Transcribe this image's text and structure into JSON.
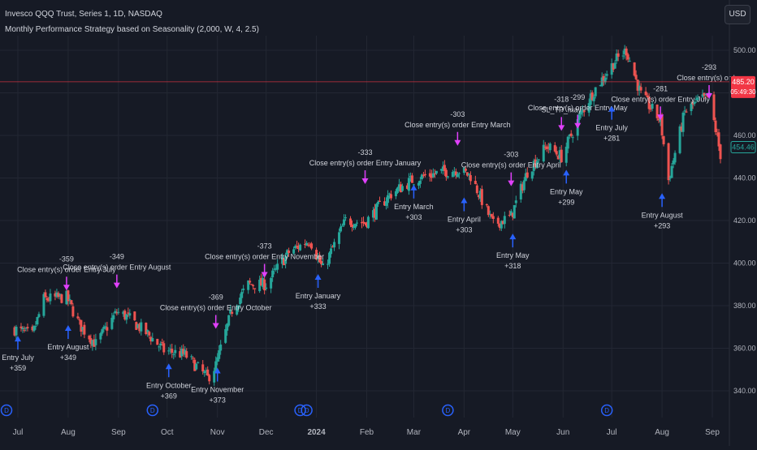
{
  "header": {
    "symbol_line": "Invesco QQQ Trust, Series 1, 1D, NASDAQ",
    "strategy_line": "Monthly Performance Strategy based on Seasonality (2,000, W, 4, 2.5)"
  },
  "currency_button": "USD",
  "colors": {
    "bg": "#161a25",
    "up": "#26a69a",
    "down": "#ef5350",
    "entry_arrow": "#2962ff",
    "exit_arrow": "#e040fb",
    "grid": "#232733",
    "price_line": "#f23645"
  },
  "price_tags": {
    "current_price": "485.20",
    "countdown": "05:49:30",
    "last_close": "454.46"
  },
  "chart_data": {
    "type": "candlestick",
    "title": "Invesco QQQ Trust, Series 1, 1D, NASDAQ",
    "ylim": [
      330,
      510
    ],
    "y_ticks": [
      "500.00",
      "480.00",
      "460.00",
      "440.00",
      "420.00",
      "400.00",
      "380.00",
      "360.00",
      "340.00"
    ],
    "x_ticks": [
      "Jul",
      "Aug",
      "Sep",
      "Oct",
      "Nov",
      "Dec",
      "2024",
      "Feb",
      "Mar",
      "Apr",
      "May",
      "Jun",
      "Jul",
      "Aug",
      "Sep"
    ],
    "grid": true,
    "series": [
      {
        "name": "QQQ",
        "points": [
          [
            "2023-06-29",
            369
          ],
          [
            "2023-07-10",
            366
          ],
          [
            "2023-07-17",
            383
          ],
          [
            "2023-07-31",
            384
          ],
          [
            "2023-08-08",
            371
          ],
          [
            "2023-08-18",
            362
          ],
          [
            "2023-08-31",
            377
          ],
          [
            "2023-09-06",
            375
          ],
          [
            "2023-09-20",
            366
          ],
          [
            "2023-09-29",
            359
          ],
          [
            "2023-10-12",
            357
          ],
          [
            "2023-10-26",
            346
          ],
          [
            "2023-10-31",
            352
          ],
          [
            "2023-11-10",
            378
          ],
          [
            "2023-11-20",
            390
          ],
          [
            "2023-12-01",
            390
          ],
          [
            "2023-12-15",
            405
          ],
          [
            "2023-12-28",
            411
          ],
          [
            "2024-01-05",
            397
          ],
          [
            "2024-01-19",
            420
          ],
          [
            "2024-01-31",
            419
          ],
          [
            "2024-02-15",
            432
          ],
          [
            "2024-02-29",
            439
          ],
          [
            "2024-03-08",
            441
          ],
          [
            "2024-03-20",
            443
          ],
          [
            "2024-03-28",
            444
          ],
          [
            "2024-04-05",
            441
          ],
          [
            "2024-04-19",
            418
          ],
          [
            "2024-04-30",
            422
          ],
          [
            "2024-05-10",
            443
          ],
          [
            "2024-05-22",
            455
          ],
          [
            "2024-05-31",
            450
          ],
          [
            "2024-06-12",
            470
          ],
          [
            "2024-06-20",
            481
          ],
          [
            "2024-07-03",
            495
          ],
          [
            "2024-07-10",
            500
          ],
          [
            "2024-07-19",
            479
          ],
          [
            "2024-07-31",
            467
          ],
          [
            "2024-08-05",
            439
          ],
          [
            "2024-08-15",
            471
          ],
          [
            "2024-08-23",
            476
          ],
          [
            "2024-08-30",
            478
          ],
          [
            "2024-09-06",
            451
          ]
        ]
      }
    ],
    "annotations": [
      {
        "kind": "entry",
        "date": "2023-07-01",
        "price": 367,
        "label": "Entry July",
        "value": "+359"
      },
      {
        "kind": "exit",
        "date": "2023-07-31",
        "price": 386,
        "label": "Close entry(s) order Entry July",
        "value": "-359"
      },
      {
        "kind": "entry",
        "date": "2023-08-01",
        "price": 372,
        "label": "Entry August",
        "value": "+349"
      },
      {
        "kind": "exit",
        "date": "2023-08-31",
        "price": 387,
        "label": "Close entry(s) order Entry August",
        "value": "-349"
      },
      {
        "kind": "entry",
        "date": "2023-10-02",
        "price": 354,
        "label": "Entry October",
        "value": "+369"
      },
      {
        "kind": "exit",
        "date": "2023-10-31",
        "price": 368,
        "label": "Close entry(s) order Entry October",
        "value": "-369"
      },
      {
        "kind": "entry",
        "date": "2023-11-01",
        "price": 352,
        "label": "Entry November",
        "value": "+373"
      },
      {
        "kind": "exit",
        "date": "2023-11-30",
        "price": 392,
        "label": "Close entry(s) order Entry November",
        "value": "-373"
      },
      {
        "kind": "entry",
        "date": "2024-01-02",
        "price": 396,
        "label": "Entry January",
        "value": "+333"
      },
      {
        "kind": "exit",
        "date": "2024-01-31",
        "price": 436,
        "label": "Close entry(s) order Entry January",
        "value": "-333"
      },
      {
        "kind": "entry",
        "date": "2024-03-01",
        "price": 438,
        "label": "Entry March",
        "value": "+303"
      },
      {
        "kind": "exit",
        "date": "2024-03-28",
        "price": 454,
        "label": "Close entry(s) order Entry March",
        "value": "-303"
      },
      {
        "kind": "entry",
        "date": "2024-04-01",
        "price": 432,
        "label": "Entry April",
        "value": "+303"
      },
      {
        "kind": "exit",
        "date": "2024-04-30",
        "price": 435,
        "label": "Close entry(s) order Entry April",
        "value": "-303"
      },
      {
        "kind": "entry",
        "date": "2024-05-01",
        "price": 415,
        "label": "Entry May",
        "value": "+318"
      },
      {
        "kind": "exit",
        "date": "2024-05-31",
        "price": 461,
        "label": "SL_TP_may",
        "value": "-318"
      },
      {
        "kind": "entry",
        "date": "2024-06-03",
        "price": 445,
        "label": "Entry May",
        "value": "+299"
      },
      {
        "kind": "exit",
        "date": "2024-06-10",
        "price": 462,
        "label": "Close entry(s) order Entry May",
        "value": "-299"
      },
      {
        "kind": "entry",
        "date": "2024-07-01",
        "price": 475,
        "label": "Entry July",
        "value": "+281"
      },
      {
        "kind": "exit",
        "date": "2024-07-31",
        "price": 466,
        "label": "Close entry(s) order Entry July",
        "value": "-281"
      },
      {
        "kind": "entry",
        "date": "2024-08-01",
        "price": 434,
        "label": "Entry August",
        "value": "+293"
      },
      {
        "kind": "exit",
        "date": "2024-08-30",
        "price": 476,
        "label": "Close entry(s) order",
        "value": "-293"
      }
    ]
  }
}
